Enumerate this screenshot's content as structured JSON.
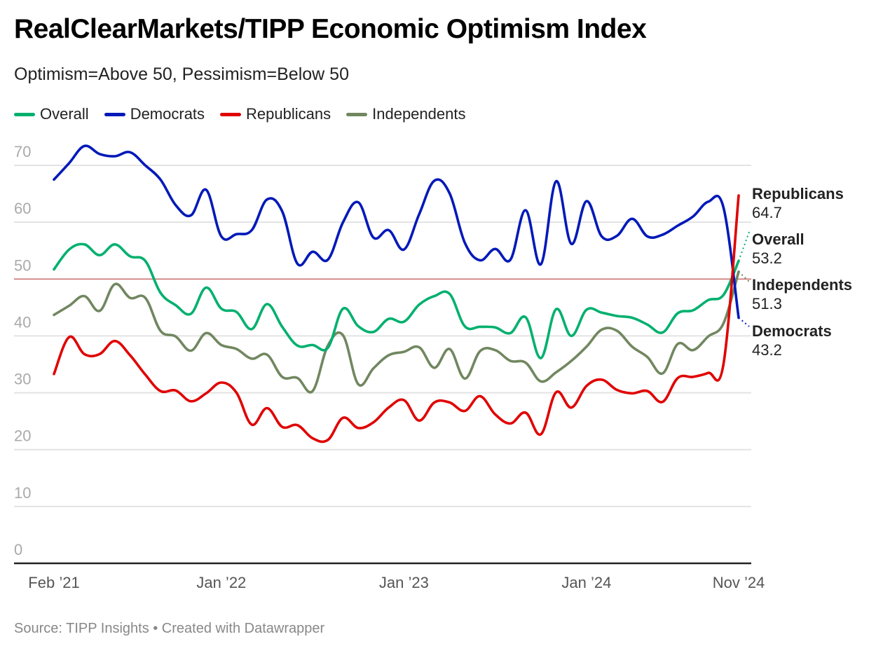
{
  "header": {
    "title": "RealClearMarkets/TIPP Economic Optimism Index",
    "subtitle": "Optimism=Above 50, Pessimism=Below 50"
  },
  "footer": {
    "source": "Source: TIPP Insights • Created with Datawrapper"
  },
  "chart_data": {
    "type": "line",
    "title": "RealClearMarkets/TIPP Economic Optimism Index",
    "subtitle": "Optimism=Above 50, Pessimism=Below 50",
    "xlabel": "",
    "ylabel": "",
    "ylim": [
      0,
      70
    ],
    "yticks": [
      0,
      10,
      20,
      30,
      40,
      50,
      60,
      70
    ],
    "ytick_labels": [
      "0",
      "10",
      "20",
      "30",
      "40",
      "50",
      "60",
      "70"
    ],
    "x_tick_labels": [
      {
        "label": "Feb ’21",
        "index": 0
      },
      {
        "label": "Jan ’22",
        "index": 11
      },
      {
        "label": "Jan ’23",
        "index": 23
      },
      {
        "label": "Jan ’24",
        "index": 35
      },
      {
        "label": "Nov ’24",
        "index": 45
      }
    ],
    "x": [
      "2021-02",
      "2021-03",
      "2021-04",
      "2021-05",
      "2021-06",
      "2021-07",
      "2021-08",
      "2021-09",
      "2021-10",
      "2021-11",
      "2021-12",
      "2022-01",
      "2022-02",
      "2022-03",
      "2022-04",
      "2022-05",
      "2022-06",
      "2022-07",
      "2022-08",
      "2022-09",
      "2022-10",
      "2022-11",
      "2022-12",
      "2023-01",
      "2023-02",
      "2023-03",
      "2023-04",
      "2023-05",
      "2023-06",
      "2023-07",
      "2023-08",
      "2023-09",
      "2023-10",
      "2023-11",
      "2023-12",
      "2024-01",
      "2024-02",
      "2024-03",
      "2024-04",
      "2024-05",
      "2024-06",
      "2024-07",
      "2024-08",
      "2024-09",
      "2024-10",
      "2024-11"
    ],
    "reference_line": {
      "value": 50,
      "color": "#d47a7a"
    },
    "grid": true,
    "legend_position": "top-left",
    "series": [
      {
        "name": "Overall",
        "color": "#00b06f",
        "end_label": "Overall",
        "end_value": "53.2",
        "values": [
          51.7,
          55.2,
          56.1,
          54.2,
          56.1,
          54.0,
          53.2,
          47.6,
          45.4,
          43.9,
          48.5,
          44.8,
          44.2,
          41.2,
          45.6,
          41.6,
          38.3,
          38.4,
          37.9,
          44.8,
          41.7,
          40.7,
          43.0,
          42.5,
          45.5,
          47.0,
          47.4,
          41.7,
          41.6,
          41.5,
          40.5,
          43.3,
          36.1,
          44.7,
          40.0,
          44.6,
          44.1,
          43.5,
          43.2,
          42.0,
          40.6,
          44.0,
          44.5,
          46.3,
          47.2,
          53.2
        ]
      },
      {
        "name": "Democrats",
        "color": "#0019b8",
        "end_label": "Democrats",
        "end_value": "43.2",
        "values": [
          67.5,
          70.4,
          73.4,
          72.0,
          71.6,
          72.3,
          70.0,
          67.5,
          63.0,
          61.2,
          65.7,
          57.5,
          57.9,
          58.6,
          64.0,
          61.9,
          52.7,
          54.8,
          53.4,
          60.0,
          63.5,
          57.3,
          58.6,
          55.2,
          61.4,
          67.3,
          65.1,
          56.4,
          53.3,
          55.3,
          53.4,
          62.1,
          52.6,
          67.2,
          56.2,
          63.7,
          57.5,
          57.6,
          60.6,
          57.5,
          57.8,
          59.4,
          61.0,
          63.6,
          62.6,
          43.2
        ]
      },
      {
        "name": "Republicans",
        "color": "#e00000",
        "end_label": "Republicans",
        "end_value": "64.7",
        "values": [
          33.3,
          39.8,
          36.8,
          36.8,
          39.1,
          36.6,
          33.2,
          30.3,
          30.4,
          28.5,
          29.9,
          31.8,
          30.0,
          24.4,
          27.3,
          24.0,
          24.3,
          22.0,
          21.7,
          25.6,
          23.8,
          24.8,
          27.4,
          28.7,
          25.1,
          28.3,
          28.3,
          26.8,
          29.4,
          26.2,
          24.6,
          26.5,
          22.7,
          30.1,
          27.4,
          31.2,
          32.3,
          30.5,
          29.9,
          30.3,
          28.4,
          32.6,
          32.8,
          33.5,
          35.0,
          64.7
        ]
      },
      {
        "name": "Independents",
        "color": "#718760",
        "end_label": "Independents",
        "end_value": "51.3",
        "values": [
          43.7,
          45.3,
          47.0,
          44.4,
          49.1,
          46.7,
          46.7,
          40.9,
          39.9,
          37.4,
          40.5,
          38.4,
          37.7,
          36.0,
          36.7,
          32.8,
          32.6,
          30.3,
          38.3,
          40.1,
          31.5,
          34.3,
          36.6,
          37.2,
          38.0,
          34.4,
          37.7,
          32.5,
          37.3,
          37.5,
          35.6,
          35.3,
          32.0,
          33.6,
          35.6,
          38.1,
          41.1,
          40.9,
          38.1,
          36.3,
          33.4,
          38.6,
          37.5,
          39.9,
          42.2,
          51.3
        ]
      }
    ]
  }
}
